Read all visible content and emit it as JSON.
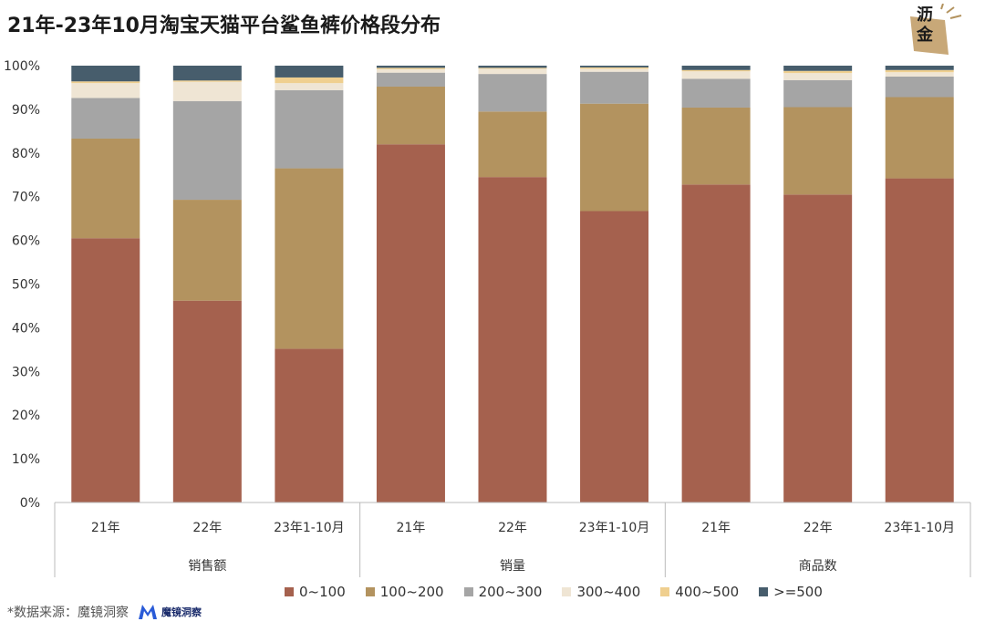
{
  "title": "21年-23年10月淘宝天猫平台鲨鱼裤价格段分布",
  "logo_text": "沥金",
  "source_text": "*数据来源：魔镜洞察",
  "source_logo_text": "魔镜洞察",
  "chart_data": {
    "type": "bar",
    "stacked": true,
    "percent": true,
    "groups": [
      "销售额",
      "销量",
      "商品数"
    ],
    "categories": [
      "21年",
      "22年",
      "23年1-10月",
      "21年",
      "22年",
      "23年1-10月",
      "21年",
      "22年",
      "23年1-10月"
    ],
    "group_of_category": [
      0,
      0,
      0,
      1,
      1,
      1,
      2,
      2,
      2
    ],
    "yticks": [
      "0%",
      "10%",
      "20%",
      "30%",
      "40%",
      "50%",
      "60%",
      "70%",
      "80%",
      "90%",
      "100%"
    ],
    "ylim": [
      0,
      100
    ],
    "series": [
      {
        "name": "0~100",
        "color": "#a5614e",
        "values": [
          60.5,
          46.2,
          35.2,
          82.0,
          74.5,
          66.7,
          72.8,
          70.5,
          74.2
        ]
      },
      {
        "name": "100~200",
        "color": "#b3935f",
        "values": [
          22.8,
          23.1,
          41.3,
          13.2,
          15.0,
          24.6,
          17.6,
          20.0,
          18.6
        ]
      },
      {
        "name": "200~300",
        "color": "#a5a5a5",
        "values": [
          9.3,
          22.6,
          17.9,
          3.2,
          8.6,
          7.3,
          6.6,
          6.2,
          4.7
        ]
      },
      {
        "name": "300~400",
        "color": "#efe5d4",
        "values": [
          3.4,
          4.4,
          1.6,
          0.8,
          1.2,
          0.7,
          1.7,
          1.6,
          1.0
        ]
      },
      {
        "name": "400~500",
        "color": "#efcf8f",
        "values": [
          0.4,
          0.3,
          1.3,
          0.3,
          0.2,
          0.3,
          0.3,
          0.5,
          0.5
        ]
      },
      {
        "name": ">=500",
        "color": "#475d6c",
        "values": [
          3.6,
          3.4,
          2.7,
          0.5,
          0.5,
          0.4,
          1.0,
          1.2,
          1.0
        ]
      }
    ]
  }
}
